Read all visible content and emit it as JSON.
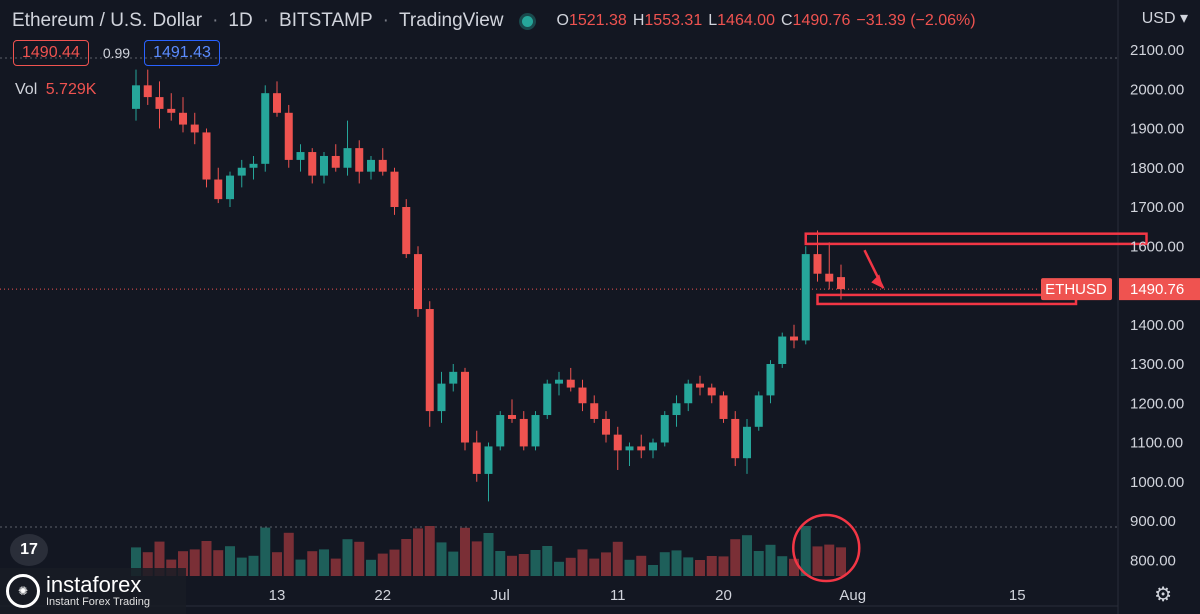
{
  "header": {
    "symbol": "Ethereum / U.S. Dollar",
    "interval": "1D",
    "exchange": "BITSTAMP",
    "source": "TradingView",
    "ohlc": {
      "o_label": "O",
      "o": "1521.38",
      "h_label": "H",
      "h": "1553.31",
      "l_label": "L",
      "l": "1464.00",
      "c_label": "C",
      "c": "1490.76",
      "change": "−31.39 (−2.06%)"
    }
  },
  "currency": "USD ▾",
  "price_boxes": {
    "bid": "1490.44",
    "spread": "0.99",
    "ask": "1491.43"
  },
  "volume_legend": {
    "label": "Vol",
    "value": "5.729K"
  },
  "watermark": {
    "name": "instaforex",
    "tagline": "Instant Forex Trading"
  },
  "icons": {
    "tv_logo": "tradingview-logo-icon",
    "gear": "gear-icon",
    "status": "market-status-icon"
  },
  "chart_data": {
    "type": "candlestick",
    "y_ticks": [
      "2100.00",
      "2000.00",
      "1900.00",
      "1800.00",
      "1700.00",
      "1600.00",
      "1400.00",
      "1300.00",
      "1200.00",
      "1100.00",
      "1000.00",
      "900.00",
      "800.00"
    ],
    "x_ticks": [
      {
        "label": "13",
        "date": "2021-05-13"
      },
      {
        "label": "22",
        "date": "2021-05-22"
      },
      {
        "label": "Jul",
        "date": "2021-06-01"
      },
      {
        "label": "11",
        "date": "2021-06-11"
      },
      {
        "label": "20",
        "date": "2021-06-20"
      },
      {
        "label": "Aug",
        "date": "2021-07-01"
      },
      {
        "label": "15",
        "date": "2021-07-15"
      }
    ],
    "last_price": {
      "symbol": "ETHUSD",
      "value": "1490.76"
    },
    "candles": [
      {
        "date": "2021-05-01",
        "o": 1950,
        "h": 2050,
        "l": 1920,
        "c": 2010
      },
      {
        "date": "2021-05-02",
        "o": 2010,
        "h": 2050,
        "l": 1960,
        "c": 1980
      },
      {
        "date": "2021-05-03",
        "o": 1980,
        "h": 2020,
        "l": 1900,
        "c": 1950
      },
      {
        "date": "2021-05-04",
        "o": 1950,
        "h": 1990,
        "l": 1920,
        "c": 1940
      },
      {
        "date": "2021-05-05",
        "o": 1940,
        "h": 1980,
        "l": 1890,
        "c": 1910
      },
      {
        "date": "2021-05-06",
        "o": 1910,
        "h": 1940,
        "l": 1860,
        "c": 1890
      },
      {
        "date": "2021-05-07",
        "o": 1890,
        "h": 1900,
        "l": 1750,
        "c": 1770
      },
      {
        "date": "2021-05-08",
        "o": 1770,
        "h": 1800,
        "l": 1710,
        "c": 1720
      },
      {
        "date": "2021-05-09",
        "o": 1720,
        "h": 1790,
        "l": 1700,
        "c": 1780
      },
      {
        "date": "2021-05-10",
        "o": 1780,
        "h": 1820,
        "l": 1750,
        "c": 1800
      },
      {
        "date": "2021-05-11",
        "o": 1800,
        "h": 1830,
        "l": 1770,
        "c": 1810
      },
      {
        "date": "2021-05-12",
        "o": 1810,
        "h": 2010,
        "l": 1790,
        "c": 1990
      },
      {
        "date": "2021-05-13",
        "o": 1990,
        "h": 2020,
        "l": 1930,
        "c": 1940
      },
      {
        "date": "2021-05-14",
        "o": 1940,
        "h": 1960,
        "l": 1800,
        "c": 1820
      },
      {
        "date": "2021-05-15",
        "o": 1820,
        "h": 1860,
        "l": 1790,
        "c": 1840
      },
      {
        "date": "2021-05-16",
        "o": 1840,
        "h": 1850,
        "l": 1760,
        "c": 1780
      },
      {
        "date": "2021-05-17",
        "o": 1780,
        "h": 1840,
        "l": 1760,
        "c": 1830
      },
      {
        "date": "2021-05-18",
        "o": 1830,
        "h": 1860,
        "l": 1790,
        "c": 1800
      },
      {
        "date": "2021-05-19",
        "o": 1800,
        "h": 1920,
        "l": 1780,
        "c": 1850
      },
      {
        "date": "2021-05-20",
        "o": 1850,
        "h": 1870,
        "l": 1760,
        "c": 1790
      },
      {
        "date": "2021-05-21",
        "o": 1790,
        "h": 1830,
        "l": 1770,
        "c": 1820
      },
      {
        "date": "2021-05-22",
        "o": 1820,
        "h": 1850,
        "l": 1780,
        "c": 1790
      },
      {
        "date": "2021-05-23",
        "o": 1790,
        "h": 1800,
        "l": 1680,
        "c": 1700
      },
      {
        "date": "2021-05-24",
        "o": 1700,
        "h": 1720,
        "l": 1570,
        "c": 1580
      },
      {
        "date": "2021-05-25",
        "o": 1580,
        "h": 1600,
        "l": 1420,
        "c": 1440
      },
      {
        "date": "2021-05-26",
        "o": 1440,
        "h": 1460,
        "l": 1140,
        "c": 1180
      },
      {
        "date": "2021-05-27",
        "o": 1180,
        "h": 1280,
        "l": 1150,
        "c": 1250
      },
      {
        "date": "2021-05-28",
        "o": 1250,
        "h": 1300,
        "l": 1230,
        "c": 1280
      },
      {
        "date": "2021-05-29",
        "o": 1280,
        "h": 1290,
        "l": 1080,
        "c": 1100
      },
      {
        "date": "2021-05-30",
        "o": 1100,
        "h": 1130,
        "l": 1000,
        "c": 1020
      },
      {
        "date": "2021-05-31",
        "o": 1020,
        "h": 1100,
        "l": 950,
        "c": 1090
      },
      {
        "date": "2021-06-01",
        "o": 1090,
        "h": 1180,
        "l": 1080,
        "c": 1170
      },
      {
        "date": "2021-06-02",
        "o": 1170,
        "h": 1210,
        "l": 1150,
        "c": 1160
      },
      {
        "date": "2021-06-03",
        "o": 1160,
        "h": 1180,
        "l": 1080,
        "c": 1090
      },
      {
        "date": "2021-06-04",
        "o": 1090,
        "h": 1180,
        "l": 1080,
        "c": 1170
      },
      {
        "date": "2021-06-05",
        "o": 1170,
        "h": 1260,
        "l": 1160,
        "c": 1250
      },
      {
        "date": "2021-06-06",
        "o": 1250,
        "h": 1280,
        "l": 1220,
        "c": 1260
      },
      {
        "date": "2021-06-07",
        "o": 1260,
        "h": 1290,
        "l": 1230,
        "c": 1240
      },
      {
        "date": "2021-06-08",
        "o": 1240,
        "h": 1260,
        "l": 1180,
        "c": 1200
      },
      {
        "date": "2021-06-09",
        "o": 1200,
        "h": 1220,
        "l": 1150,
        "c": 1160
      },
      {
        "date": "2021-06-10",
        "o": 1160,
        "h": 1180,
        "l": 1100,
        "c": 1120
      },
      {
        "date": "2021-06-11",
        "o": 1120,
        "h": 1140,
        "l": 1030,
        "c": 1080
      },
      {
        "date": "2021-06-12",
        "o": 1080,
        "h": 1100,
        "l": 1040,
        "c": 1090
      },
      {
        "date": "2021-06-13",
        "o": 1090,
        "h": 1120,
        "l": 1060,
        "c": 1080
      },
      {
        "date": "2021-06-14",
        "o": 1080,
        "h": 1110,
        "l": 1060,
        "c": 1100
      },
      {
        "date": "2021-06-15",
        "o": 1100,
        "h": 1180,
        "l": 1090,
        "c": 1170
      },
      {
        "date": "2021-06-16",
        "o": 1170,
        "h": 1220,
        "l": 1140,
        "c": 1200
      },
      {
        "date": "2021-06-17",
        "o": 1200,
        "h": 1260,
        "l": 1180,
        "c": 1250
      },
      {
        "date": "2021-06-18",
        "o": 1250,
        "h": 1270,
        "l": 1220,
        "c": 1240
      },
      {
        "date": "2021-06-19",
        "o": 1240,
        "h": 1250,
        "l": 1200,
        "c": 1220
      },
      {
        "date": "2021-06-20",
        "o": 1220,
        "h": 1230,
        "l": 1150,
        "c": 1160
      },
      {
        "date": "2021-06-21",
        "o": 1160,
        "h": 1180,
        "l": 1040,
        "c": 1060
      },
      {
        "date": "2021-06-22",
        "o": 1060,
        "h": 1160,
        "l": 1020,
        "c": 1140
      },
      {
        "date": "2021-06-23",
        "o": 1140,
        "h": 1230,
        "l": 1130,
        "c": 1220
      },
      {
        "date": "2021-06-24",
        "o": 1220,
        "h": 1310,
        "l": 1200,
        "c": 1300
      },
      {
        "date": "2021-06-25",
        "o": 1300,
        "h": 1380,
        "l": 1290,
        "c": 1370
      },
      {
        "date": "2021-06-26",
        "o": 1370,
        "h": 1400,
        "l": 1340,
        "c": 1360
      },
      {
        "date": "2021-06-27",
        "o": 1360,
        "h": 1600,
        "l": 1350,
        "c": 1580
      },
      {
        "date": "2021-06-28",
        "o": 1580,
        "h": 1640,
        "l": 1510,
        "c": 1530
      },
      {
        "date": "2021-06-29",
        "o": 1530,
        "h": 1610,
        "l": 1490,
        "c": 1510
      },
      {
        "date": "2021-06-30",
        "o": 1521.38,
        "h": 1553.31,
        "l": 1464,
        "c": 1490.76
      }
    ],
    "annotations": [
      {
        "type": "rectangle",
        "from_date": "2021-06-27",
        "to_date": "2021-07-26",
        "price_top": 1632,
        "price_bottom": 1606
      },
      {
        "type": "rectangle",
        "from_date": "2021-06-28",
        "to_date": "2021-07-20",
        "price_top": 1476,
        "price_bottom": 1453
      },
      {
        "type": "arrow",
        "from_date": "2021-07-02",
        "from_price": 1590,
        "to_date": "2021-07-03",
        "to_price": 1480
      },
      {
        "type": "circle",
        "around_date": "2021-06-29",
        "note": "volume"
      }
    ]
  },
  "colors": {
    "up": "#26a69a",
    "down": "#ef5350",
    "up_vol": "#1e5f5a",
    "down_vol": "#7a2f36",
    "annotation": "#f23645"
  }
}
